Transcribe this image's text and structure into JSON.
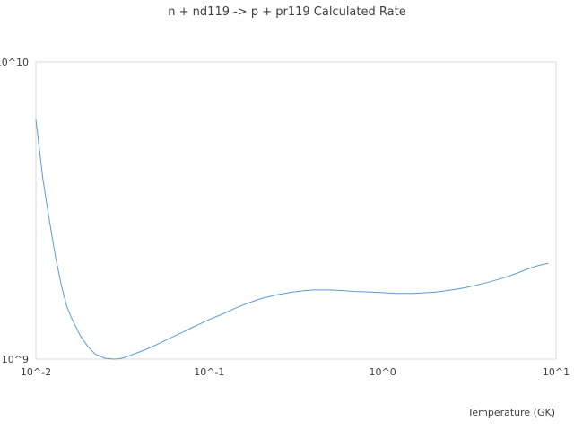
{
  "chart_data": {
    "type": "line",
    "title": "n + nd119 -> p + pr119 Calculated Rate",
    "xlabel": "Temperature (GK)",
    "ylabel": "",
    "x_scale": "log",
    "y_scale": "log",
    "xlim": [
      0.01,
      10
    ],
    "ylim": [
      1000000000,
      10000000000
    ],
    "x_tick_values": [
      0.01,
      0.1,
      1,
      10
    ],
    "x_tick_labels": [
      "10^-2",
      "10^-1",
      "10^0",
      "10^1"
    ],
    "y_tick_values": [
      1000000000,
      10000000000
    ],
    "y_tick_labels": [
      "10^9",
      "10^10"
    ],
    "grid": false,
    "legend": "none",
    "line_color": "#5b9bd5",
    "series": [
      {
        "x": [
          0.01,
          0.011,
          0.012,
          0.013,
          0.014,
          0.015,
          0.016,
          0.018,
          0.02,
          0.022,
          0.025,
          0.028,
          0.03,
          0.032,
          0.035,
          0.04,
          0.045,
          0.05,
          0.06,
          0.07,
          0.08,
          0.09,
          0.1,
          0.12,
          0.14,
          0.16,
          0.2,
          0.25,
          0.3,
          0.35,
          0.4,
          0.5,
          0.6,
          0.7,
          0.8,
          1.0,
          1.2,
          1.5,
          2.0,
          2.5,
          3.0,
          4.0,
          5.0,
          6.0,
          7.0,
          8.0,
          9.0
        ],
        "y": [
          6400000000.0,
          4000000000.0,
          2900000000.0,
          2200000000.0,
          1780000000.0,
          1520000000.0,
          1380000000.0,
          1200000000.0,
          1100000000.0,
          1040000000.0,
          1007000000.0,
          1000000000.0,
          1003000000.0,
          1010000000.0,
          1030000000.0,
          1060000000.0,
          1090000000.0,
          1120000000.0,
          1180000000.0,
          1230000000.0,
          1280000000.0,
          1320000000.0,
          1360000000.0,
          1420000000.0,
          1480000000.0,
          1530000000.0,
          1600000000.0,
          1650000000.0,
          1680000000.0,
          1700000000.0,
          1710000000.0,
          1710000000.0,
          1700000000.0,
          1690000000.0,
          1685000000.0,
          1675000000.0,
          1665000000.0,
          1665000000.0,
          1680000000.0,
          1710000000.0,
          1740000000.0,
          1810000000.0,
          1880000000.0,
          1950000000.0,
          2020000000.0,
          2070000000.0,
          2100000000.0
        ]
      }
    ]
  }
}
